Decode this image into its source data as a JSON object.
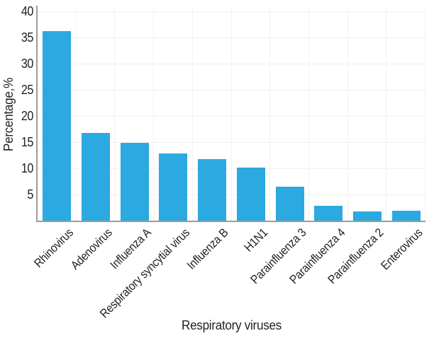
{
  "figure": {
    "background_color": "#ffffff",
    "text_color": "#231f20"
  },
  "chart_data": {
    "type": "bar",
    "title": "",
    "xlabel": "Respiratory viruses",
    "ylabel": "Percentage,%",
    "categories": [
      "Rhinovirus",
      "Adenovirus",
      "Influenza A",
      "Respiratory syncytial virus",
      "Influenza B",
      "H1N1",
      "Parainfluenza 3",
      "Parainfluenza 4",
      "Parainfluenza 2",
      "Enterovirus"
    ],
    "values": [
      36.2,
      16.8,
      14.8,
      12.9,
      11.8,
      10.1,
      6.5,
      2.9,
      1.8,
      1.9
    ],
    "ylim": [
      0,
      40
    ],
    "yticks": [
      5,
      10,
      15,
      20,
      25,
      30,
      35,
      40
    ],
    "legend_position": "none",
    "grid": "horizontal-and-vertical-faint",
    "bar_color": "#2BA9E0",
    "axis_color": "#9b9b9b",
    "gridline_color": "#f3f1f1",
    "label_rotation_deg": -45
  }
}
